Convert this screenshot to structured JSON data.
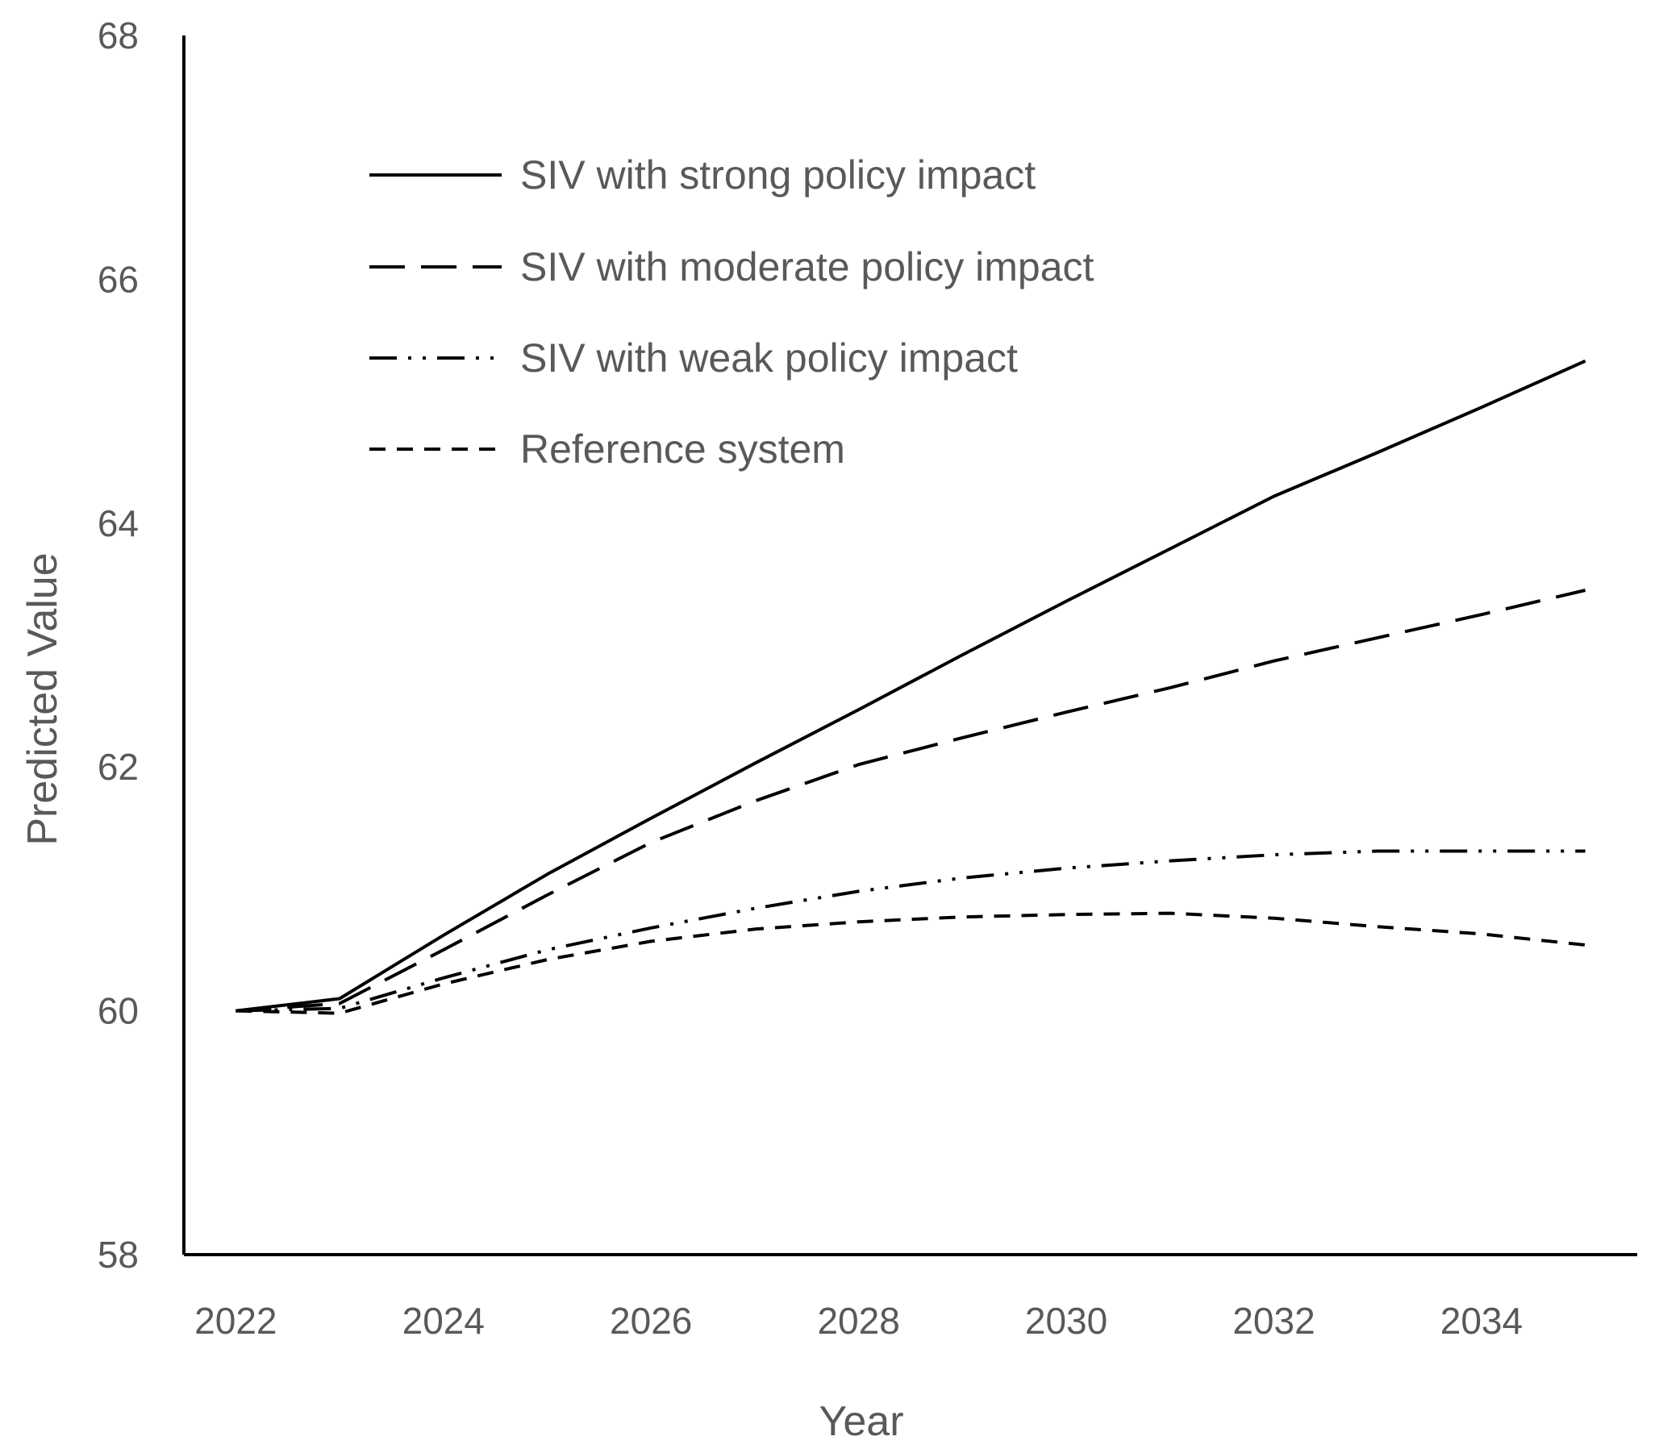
{
  "chart_data": {
    "type": "line",
    "title": "",
    "xlabel": "Year",
    "ylabel": "Predicted Value",
    "xlim": [
      2021.5,
      2035.5
    ],
    "ylim": [
      58,
      68
    ],
    "x_ticks": [
      2022,
      2024,
      2026,
      2028,
      2030,
      2032,
      2034
    ],
    "y_ticks": [
      58,
      60,
      62,
      64,
      66,
      68
    ],
    "grid": false,
    "legend_position": "top-left",
    "x": [
      2022,
      2023,
      2024,
      2025,
      2026,
      2027,
      2028,
      2029,
      2030,
      2031,
      2032,
      2033,
      2034,
      2035
    ],
    "series": [
      {
        "name": "SIV with strong policy impact",
        "style": "solid",
        "values": [
          60.0,
          60.1,
          60.62,
          61.12,
          61.58,
          62.03,
          62.47,
          62.92,
          63.36,
          63.79,
          64.22,
          64.58,
          64.95,
          65.33
        ]
      },
      {
        "name": "SIV with moderate policy impact",
        "style": "long-dash",
        "values": [
          60.0,
          60.06,
          60.5,
          60.95,
          61.38,
          61.72,
          62.02,
          62.24,
          62.45,
          62.65,
          62.87,
          63.06,
          63.25,
          63.45
        ]
      },
      {
        "name": "SIV with weak policy impact",
        "style": "dash-dot-dot",
        "values": [
          60.0,
          60.02,
          60.27,
          60.5,
          60.68,
          60.84,
          60.98,
          61.09,
          61.17,
          61.23,
          61.28,
          61.31,
          61.31,
          61.31
        ]
      },
      {
        "name": "Reference system",
        "style": "short-dash",
        "values": [
          60.0,
          59.98,
          60.22,
          60.42,
          60.57,
          60.67,
          60.73,
          60.77,
          60.79,
          60.8,
          60.76,
          60.69,
          60.63,
          60.54
        ]
      }
    ]
  },
  "colors": {
    "line": "#000000",
    "text": "#595959",
    "axis": "#000000"
  }
}
